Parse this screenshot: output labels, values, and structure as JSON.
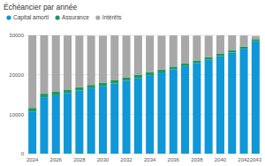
{
  "chart_data": {
    "type": "bar",
    "title": "Échéancier par année",
    "stacked": true,
    "grid": true,
    "legend": "top-left",
    "categories": [
      "2024",
      null,
      "2026",
      null,
      "2028",
      null,
      "2030",
      null,
      "2032",
      null,
      "2034",
      null,
      "2036",
      null,
      "2038",
      null,
      "2040",
      null,
      "2042",
      "2043"
    ],
    "series": [
      {
        "name": "Capital amorti",
        "color": "#0f97d8",
        "values": [
          10700,
          14300,
          14800,
          15400,
          16000,
          16600,
          17200,
          17800,
          18500,
          19200,
          19900,
          20600,
          21400,
          22200,
          23000,
          23800,
          24700,
          25600,
          26600,
          28500
        ]
      },
      {
        "name": "Assurance",
        "color": "#1a9b5a",
        "values": [
          900,
          900,
          880,
          860,
          840,
          820,
          800,
          780,
          760,
          740,
          720,
          700,
          680,
          660,
          640,
          620,
          600,
          580,
          560,
          540
        ]
      },
      {
        "name": "Intérêts",
        "color": "#a8a8a8",
        "values": [
          18400,
          14800,
          14300,
          13700,
          13100,
          12500,
          11900,
          11400,
          10700,
          10000,
          9300,
          8600,
          7900,
          7100,
          6300,
          5500,
          4700,
          3800,
          2800,
          800
        ]
      }
    ],
    "ylim": [
      0,
      30000
    ],
    "yticks": [
      0,
      10000,
      20000,
      30000
    ]
  }
}
